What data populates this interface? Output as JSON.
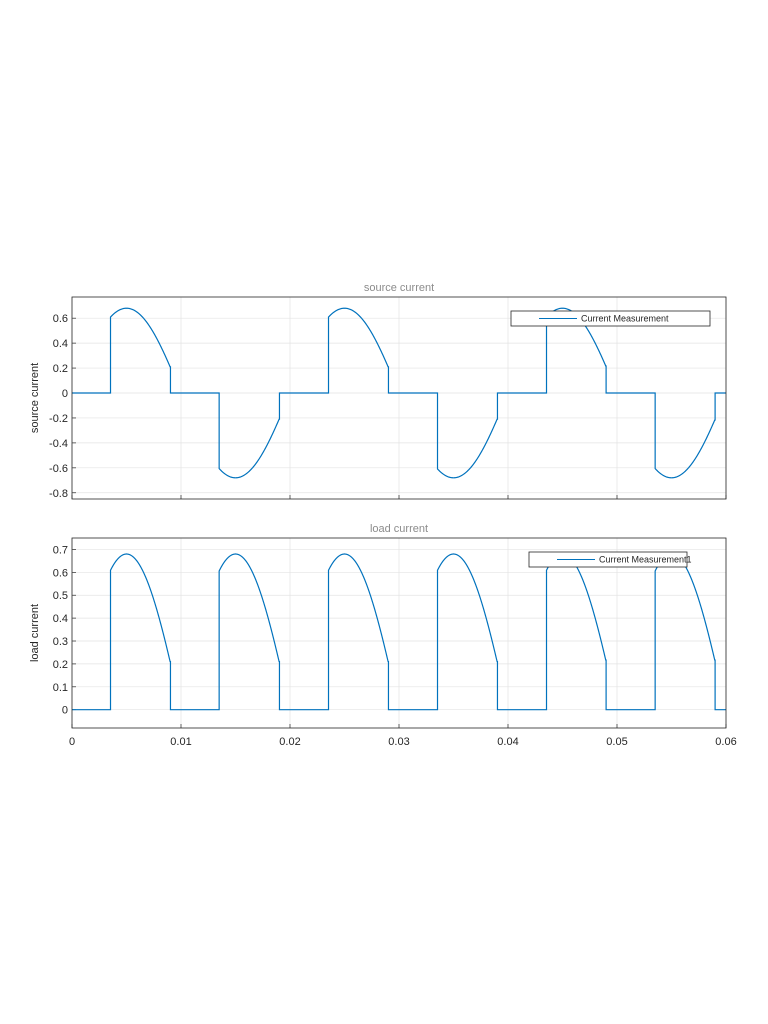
{
  "chart_data": [
    {
      "type": "line",
      "title": "source current",
      "xlabel": "",
      "ylabel": "source current",
      "xlim": [
        0,
        0.06
      ],
      "ylim": [
        -0.85,
        0.77
      ],
      "yticks": [
        0.6,
        0.4,
        0.2,
        0,
        -0.2,
        -0.4,
        -0.6,
        -0.8
      ],
      "ytick_labels": [
        "0.6",
        "0.4",
        "0.2",
        "0",
        "-0.2",
        "-0.4",
        "-0.6",
        "-0.8"
      ],
      "xticks": [
        0,
        0.01,
        0.02,
        0.03,
        0.04,
        0.05,
        0.06
      ],
      "xtick_labels": [],
      "grid": true,
      "legend_position": "top-right",
      "series": [
        {
          "name": "Current Measurement",
          "color": "#0072bd",
          "waveform": "ac_half_controlled",
          "amplitude": 0.68,
          "frequency_hz": 50,
          "firing_delay_s": 0.0035,
          "conduction_end_s": 0.009
        }
      ]
    },
    {
      "type": "line",
      "title": "load current",
      "xlabel": "",
      "ylabel": "load current",
      "xlim": [
        0,
        0.06
      ],
      "ylim": [
        -0.08,
        0.75
      ],
      "yticks": [
        0.7,
        0.6,
        0.5,
        0.4,
        0.3,
        0.2,
        0.1,
        0
      ],
      "ytick_labels": [
        "0.7",
        "0.6",
        "0.5",
        "0.4",
        "0.3",
        "0.2",
        "0.1",
        "0"
      ],
      "xticks": [
        0,
        0.01,
        0.02,
        0.03,
        0.04,
        0.05,
        0.06
      ],
      "xtick_labels": [
        "0",
        "0.01",
        "0.02",
        "0.03",
        "0.04",
        "0.05",
        "0.06"
      ],
      "grid": true,
      "legend_position": "top-right",
      "series": [
        {
          "name": "Current Measurement1",
          "color": "#0072bd",
          "waveform": "rectified_controlled",
          "amplitude": 0.68,
          "frequency_hz": 50,
          "firing_delay_s": 0.0035,
          "conduction_end_s": 0.009
        }
      ]
    }
  ]
}
